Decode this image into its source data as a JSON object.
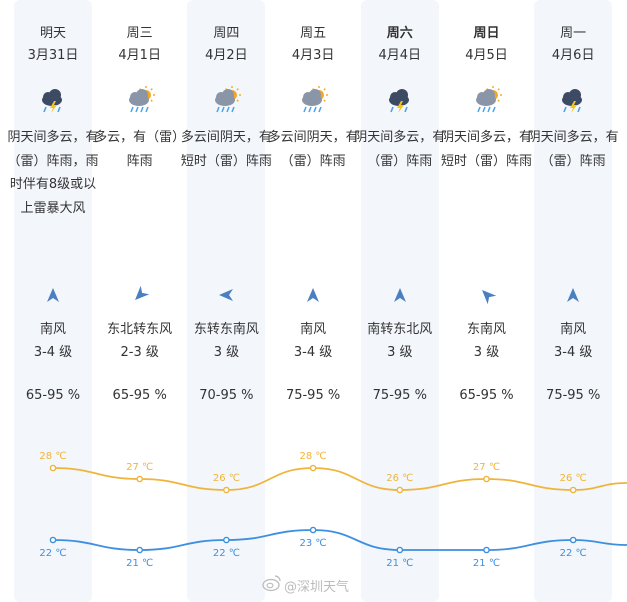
{
  "days": [
    {
      "day": "明天",
      "date": "3月31日",
      "icon": "thunderstorm-cloud-icon",
      "desc": "阴天间多云，有（雷）阵雨，雨时伴有8级或以上雷暴大风",
      "wind": "南风",
      "level": "3-4 级",
      "wind_dir": "south-wind-arrow-icon",
      "humidity": "65-95 %",
      "high": "28 ℃",
      "low": "22 ℃",
      "bold": false
    },
    {
      "day": "周三",
      "date": "4月1日",
      "icon": "sun-cloud-rain-icon",
      "desc": "多云，有（雷）阵雨",
      "wind": "东北转东风",
      "level": "2-3 级",
      "wind_dir": "northeast-wind-arrow-icon",
      "humidity": "65-95 %",
      "high": "27 ℃",
      "low": "21 ℃",
      "bold": false
    },
    {
      "day": "周四",
      "date": "4月2日",
      "icon": "sun-cloud-rain-icon",
      "desc": "多云间阴天，有短时（雷）阵雨",
      "wind": "东转东南风",
      "level": "3 级",
      "wind_dir": "east-wind-arrow-icon",
      "humidity": "70-95 %",
      "high": "26 ℃",
      "low": "22 ℃",
      "bold": false
    },
    {
      "day": "周五",
      "date": "4月3日",
      "icon": "sun-cloud-rain-icon",
      "desc": "多云间阴天，有（雷）阵雨",
      "wind": "南风",
      "level": "3-4 级",
      "wind_dir": "south-wind-arrow-icon",
      "humidity": "75-95 %",
      "high": "28 ℃",
      "low": "23 ℃",
      "bold": false
    },
    {
      "day": "周六",
      "date": "4月4日",
      "icon": "thunderstorm-cloud-icon",
      "desc": "阴天间多云，有（雷）阵雨",
      "wind": "南转东北风",
      "level": "3 级",
      "wind_dir": "south-wind-arrow-icon",
      "humidity": "75-95 %",
      "high": "26 ℃",
      "low": "21 ℃",
      "bold": true
    },
    {
      "day": "周日",
      "date": "4月5日",
      "icon": "sun-cloud-rain-icon",
      "desc": "阴天间多云，有短时（雷）阵雨",
      "wind": "东南风",
      "level": "3 级",
      "wind_dir": "southeast-wind-arrow-icon",
      "humidity": "65-95 %",
      "high": "27 ℃",
      "low": "21 ℃",
      "bold": true
    },
    {
      "day": "周一",
      "date": "4月6日",
      "icon": "thunderstorm-cloud-icon",
      "desc": "阴天间多云，有（雷）阵雨",
      "wind": "南风",
      "level": "3-4 级",
      "wind_dir": "south-wind-arrow-icon",
      "humidity": "75-95 %",
      "high": "26 ℃",
      "low": "22 ℃",
      "bold": false
    }
  ],
  "temps": {
    "high_values": [
      28,
      27,
      26,
      28,
      26,
      27,
      26
    ],
    "low_values": [
      22,
      21,
      22,
      23,
      21,
      21,
      22
    ]
  },
  "watermark": {
    "text": "@深圳天气",
    "icon": "weibo-icon"
  },
  "colors": {
    "high_line": "#f0b43c",
    "low_line": "#3d8fe0",
    "column_shade": "#f3f6fb",
    "wind_arrow": "#4a7fc1"
  }
}
